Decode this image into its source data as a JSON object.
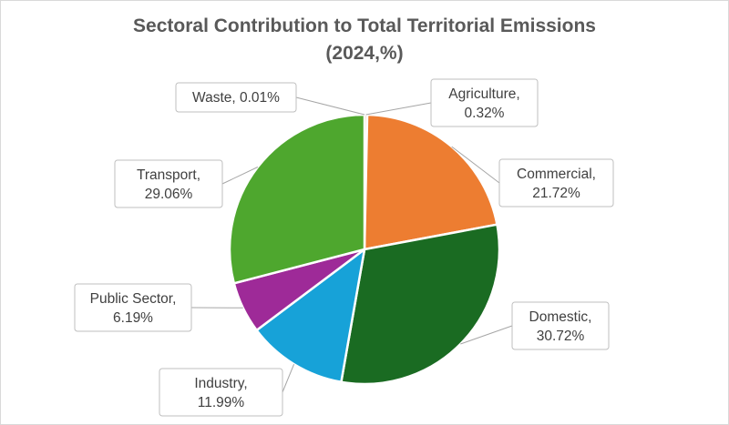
{
  "chart_data": {
    "type": "pie",
    "title": "Sectoral Contribution to Total Territorial Emissions",
    "subtitle": "(2024,%)",
    "categories": [
      "Waste",
      "Agriculture",
      "Commercial",
      "Domestic",
      "Industry",
      "Public Sector",
      "Transport"
    ],
    "values": [
      0.01,
      0.32,
      21.72,
      30.72,
      11.99,
      6.19,
      29.06
    ],
    "value_suffix": "%",
    "start_angle_deg": 0,
    "direction": "clockwise",
    "colors": {
      "Waste": "#5b9bd5",
      "Agriculture": "#ed7d31",
      "Commercial": "#ed7d31",
      "Domestic": "#1a6b22",
      "Industry": "#17a2d8",
      "Public Sector": "#9e2a98",
      "Transport": "#4ea72e"
    },
    "data_labels": [
      {
        "category": "Waste",
        "line1": "Waste, 0.01%",
        "line2": ""
      },
      {
        "category": "Agriculture",
        "line1": "Agriculture,",
        "line2": "0.32%"
      },
      {
        "category": "Commercial",
        "line1": "Commercial,",
        "line2": "21.72%"
      },
      {
        "category": "Domestic",
        "line1": "Domestic,",
        "line2": "30.72%"
      },
      {
        "category": "Industry",
        "line1": "Industry,",
        "line2": "11.99%"
      },
      {
        "category": "Public Sector",
        "line1": "Public Sector,",
        "line2": "6.19%"
      },
      {
        "category": "Transport",
        "line1": "Transport,",
        "line2": "29.06%"
      }
    ],
    "legend": "none"
  }
}
